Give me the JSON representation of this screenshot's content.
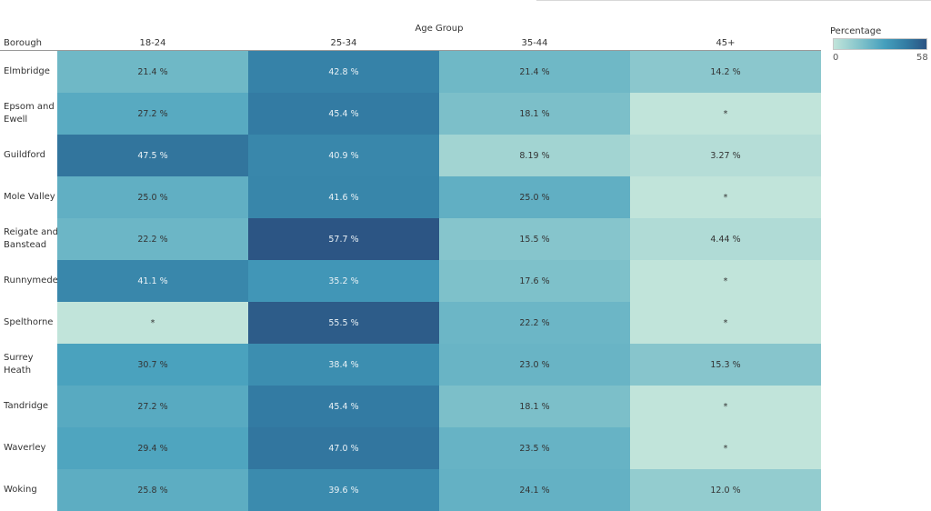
{
  "chart_data": {
    "type": "heatmap",
    "column_group_title": "Age Group",
    "row_header_title": "Borough",
    "columns": [
      "18-24",
      "25-34",
      "35-44",
      "45+"
    ],
    "rows": [
      {
        "label": "Elmbridge",
        "values": [
          21.4,
          42.8,
          21.4,
          14.2
        ],
        "display": [
          "21.4 %",
          "42.8 %",
          "21.4 %",
          "14.2 %"
        ]
      },
      {
        "label": "Epsom and\nEwell",
        "values": [
          27.2,
          45.4,
          18.1,
          null
        ],
        "display": [
          "27.2 %",
          "45.4 %",
          "18.1 %",
          "*"
        ]
      },
      {
        "label": "Guildford",
        "values": [
          47.5,
          40.9,
          8.19,
          3.27
        ],
        "display": [
          "47.5 %",
          "40.9 %",
          "8.19 %",
          "3.27 %"
        ]
      },
      {
        "label": "Mole Valley",
        "values": [
          25.0,
          41.6,
          25.0,
          null
        ],
        "display": [
          "25.0 %",
          "41.6 %",
          "25.0 %",
          "*"
        ]
      },
      {
        "label": "Reigate and\nBanstead",
        "values": [
          22.2,
          57.7,
          15.5,
          4.44
        ],
        "display": [
          "22.2 %",
          "57.7 %",
          "15.5 %",
          "4.44 %"
        ]
      },
      {
        "label": "Runnymede",
        "values": [
          41.1,
          35.2,
          17.6,
          null
        ],
        "display": [
          "41.1 %",
          "35.2 %",
          "17.6 %",
          "*"
        ]
      },
      {
        "label": "Spelthorne",
        "values": [
          null,
          55.5,
          22.2,
          null
        ],
        "display": [
          "*",
          "55.5 %",
          "22.2 %",
          "*"
        ]
      },
      {
        "label": "Surrey Heath",
        "values": [
          30.7,
          38.4,
          23.0,
          15.3
        ],
        "display": [
          "30.7 %",
          "38.4 %",
          "23.0 %",
          "15.3 %"
        ]
      },
      {
        "label": "Tandridge",
        "values": [
          27.2,
          45.4,
          18.1,
          null
        ],
        "display": [
          "27.2 %",
          "45.4 %",
          "18.1 %",
          "*"
        ]
      },
      {
        "label": "Waverley",
        "values": [
          29.4,
          47.0,
          23.5,
          null
        ],
        "display": [
          "29.4 %",
          "47.0 %",
          "23.5 %",
          "*"
        ]
      },
      {
        "label": "Woking",
        "values": [
          25.8,
          39.6,
          24.1,
          12.0
        ],
        "display": [
          "25.8 %",
          "39.6 %",
          "24.1 %",
          "12.0 %"
        ]
      }
    ],
    "legend": {
      "title": "Percentage",
      "min": 0,
      "max": 58,
      "min_label": "0",
      "max_label": "58"
    },
    "color_scale": {
      "low": "#c1e4da",
      "high": "#2c5483"
    },
    "suppressed_color": "#c1e4da"
  }
}
